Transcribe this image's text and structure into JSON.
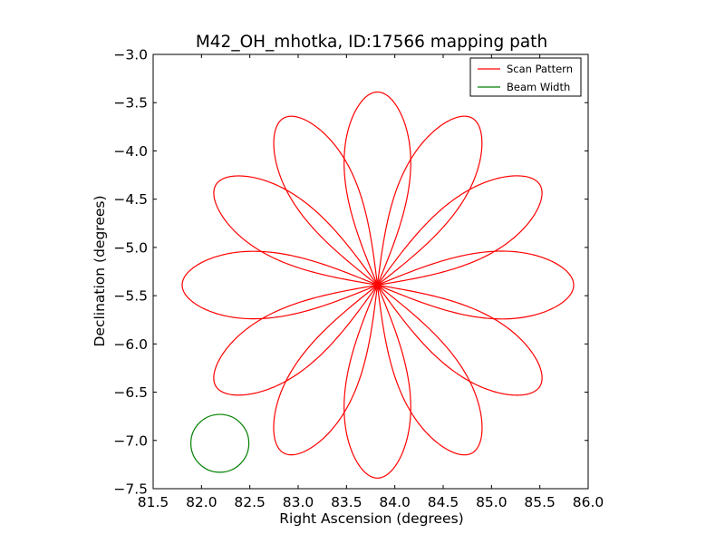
{
  "chart_data": {
    "type": "line",
    "title": "M42_OH_mhotka, ID:17566 mapping path",
    "xlabel": "Right Ascension (degrees)",
    "ylabel": "Declination (degrees)",
    "xlim": [
      81.5,
      86.0
    ],
    "ylim": [
      -7.5,
      -3.0
    ],
    "x_ticks": [
      81.5,
      82.0,
      82.5,
      83.0,
      83.5,
      84.0,
      84.5,
      85.0,
      85.5,
      86.0
    ],
    "x_tick_labels": [
      "81.5",
      "82.0",
      "82.5",
      "83.0",
      "83.5",
      "84.0",
      "84.5",
      "85.0",
      "85.5",
      "86.0"
    ],
    "y_ticks": [
      -3.0,
      -3.5,
      -4.0,
      -4.5,
      -5.0,
      -5.5,
      -6.0,
      -6.5,
      -7.0,
      -7.5
    ],
    "y_tick_labels": [
      "−3.0",
      "−3.5",
      "−4.0",
      "−4.5",
      "−5.0",
      "−5.5",
      "−6.0",
      "−6.5",
      "−7.0",
      "−7.5"
    ],
    "grid": false,
    "legend_placement": "top-right",
    "series": [
      {
        "name": "Scan Pattern",
        "color": "#ff0000",
        "kind": "rose",
        "center": [
          83.82,
          -5.39
        ],
        "petals": 12,
        "petal_tip_x": [
          83.82,
          84.8,
          85.5,
          85.85,
          85.5,
          84.8,
          83.82,
          82.85,
          82.15,
          81.8,
          82.15,
          82.85
        ],
        "petal_tip_y": [
          -3.39,
          -3.66,
          -4.35,
          -5.39,
          -6.44,
          -7.13,
          -7.39,
          -7.13,
          -6.44,
          -5.39,
          -4.35,
          -3.66
        ]
      },
      {
        "name": "Beam Width",
        "color": "#008000",
        "kind": "circle",
        "center": [
          82.19,
          -7.03
        ],
        "radius_deg": 0.3
      }
    ]
  }
}
